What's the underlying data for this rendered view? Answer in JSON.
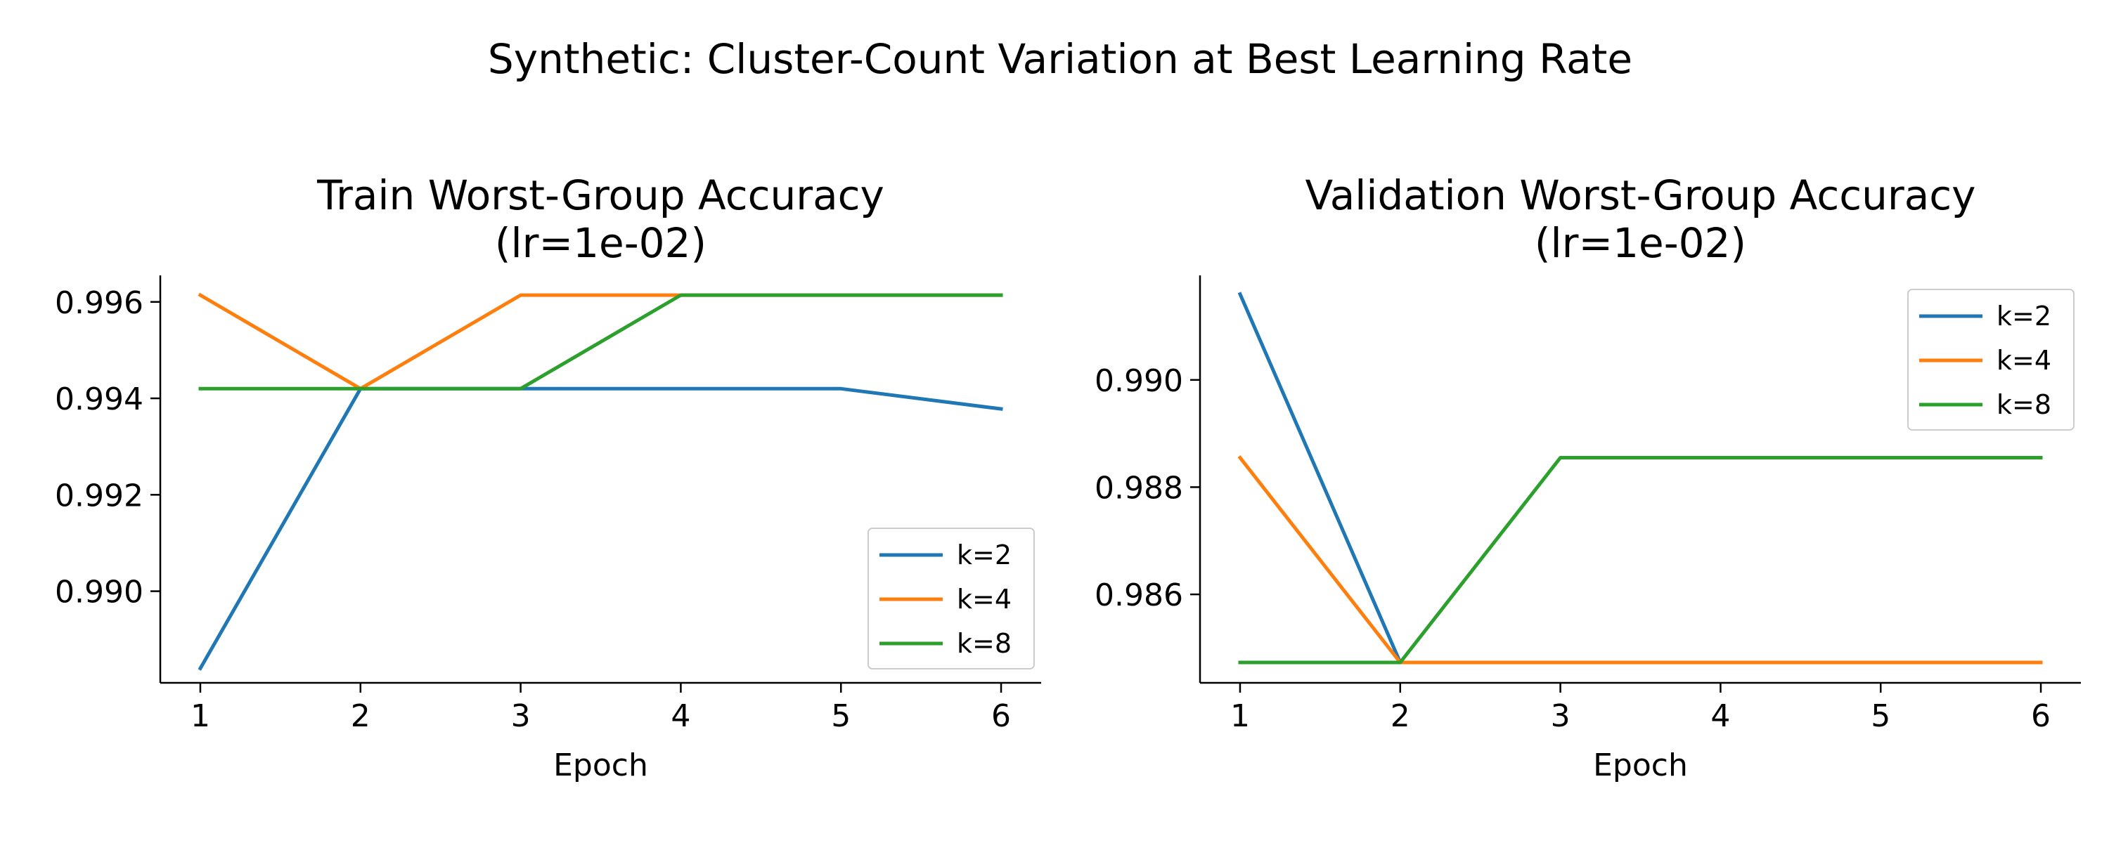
{
  "figure": {
    "title": "Synthetic: Cluster-Count Variation at Best Learning Rate"
  },
  "chart_data": [
    {
      "type": "line",
      "title": [
        "Train Worst-Group Accuracy",
        "(lr=1e-02)"
      ],
      "xlabel": "Epoch",
      "ylabel": "",
      "x": [
        1,
        2,
        3,
        4,
        5,
        6
      ],
      "xticks": [
        1,
        2,
        3,
        4,
        5,
        6
      ],
      "yticks": [
        0.99,
        0.992,
        0.994,
        0.996
      ],
      "ytick_labels": [
        "0.990",
        "0.992",
        "0.994",
        "0.996"
      ],
      "xlim": [
        0.75,
        6.25
      ],
      "ylim": [
        0.9881,
        0.99655
      ],
      "grid": false,
      "legend_position": "lower-right",
      "series": [
        {
          "name": "k=2",
          "color": "#1f77b4",
          "values": [
            0.9884,
            0.9942,
            0.9942,
            0.9942,
            0.9942,
            0.99378
          ]
        },
        {
          "name": "k=4",
          "color": "#ff7f0e",
          "values": [
            0.99614,
            0.9942,
            0.99614,
            0.99614,
            0.99614,
            0.99614
          ]
        },
        {
          "name": "k=8",
          "color": "#2ca02c",
          "values": [
            0.9942,
            0.9942,
            0.9942,
            0.99614,
            0.99614,
            0.99614
          ]
        }
      ]
    },
    {
      "type": "line",
      "title": [
        "Validation Worst-Group Accuracy",
        "(lr=1e-02)"
      ],
      "xlabel": "Epoch",
      "ylabel": "",
      "x": [
        1,
        2,
        3,
        4,
        5,
        6
      ],
      "xticks": [
        1,
        2,
        3,
        4,
        5,
        6
      ],
      "yticks": [
        0.986,
        0.988,
        0.99
      ],
      "ytick_labels": [
        "0.986",
        "0.988",
        "0.990"
      ],
      "xlim": [
        0.75,
        6.25
      ],
      "ylim": [
        0.98435,
        0.99195
      ],
      "grid": false,
      "legend_position": "upper-right",
      "series": [
        {
          "name": "k=2",
          "color": "#1f77b4",
          "values": [
            0.9916,
            0.98473,
            0.98473,
            0.98473,
            0.98473,
            0.98473
          ]
        },
        {
          "name": "k=4",
          "color": "#ff7f0e",
          "values": [
            0.98855,
            0.98473,
            0.98473,
            0.98473,
            0.98473,
            0.98473
          ]
        },
        {
          "name": "k=8",
          "color": "#2ca02c",
          "values": [
            0.98473,
            0.98473,
            0.98855,
            0.98855,
            0.98855,
            0.98855
          ]
        }
      ]
    }
  ]
}
